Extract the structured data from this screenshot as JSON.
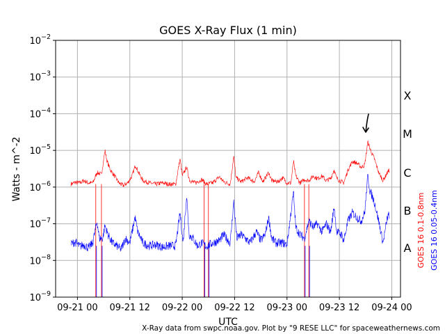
{
  "chart_data": {
    "type": "line",
    "title": "GOES X-Ray Flux (1 min)",
    "xlabel": "UTC",
    "ylabel": "Watts - m^-2",
    "y_scale": "log",
    "ylim": [
      1e-09,
      0.01
    ],
    "xlim_hours": [
      -5.0,
      74.0
    ],
    "x_ticks": [
      {
        "hour": 0,
        "label": "09-21 00"
      },
      {
        "hour": 12,
        "label": "09-21 12"
      },
      {
        "hour": 24,
        "label": "09-22 00"
      },
      {
        "hour": 36,
        "label": "09-22 12"
      },
      {
        "hour": 48,
        "label": "09-23 00"
      },
      {
        "hour": 60,
        "label": "09-23 12"
      },
      {
        "hour": 72,
        "label": "09-24 00"
      }
    ],
    "y_ticks": [
      {
        "value": 1e-09,
        "base": "10",
        "exp": "−9"
      },
      {
        "value": 1e-08,
        "base": "10",
        "exp": "−8"
      },
      {
        "value": 1e-07,
        "base": "10",
        "exp": "−7"
      },
      {
        "value": 1e-06,
        "base": "10",
        "exp": "−6"
      },
      {
        "value": 1e-05,
        "base": "10",
        "exp": "−5"
      },
      {
        "value": 0.0001,
        "base": "10",
        "exp": "−4"
      },
      {
        "value": 0.001,
        "base": "10",
        "exp": "−3"
      },
      {
        "value": 0.01,
        "base": "10",
        "exp": "−2"
      }
    ],
    "grid": true,
    "flare_classes": [
      {
        "label": "X",
        "value": 0.00032
      },
      {
        "label": "M",
        "value": 2.9e-05
      },
      {
        "label": "C",
        "value": 2.5e-06
      },
      {
        "label": "B",
        "value": 2.3e-07
      },
      {
        "label": "A",
        "value": 2.2e-08
      }
    ],
    "series": [
      {
        "name": "GOES 16 0.1-0.8nm",
        "color": "#ff0000",
        "points": [
          [
            -1.5,
            1.2e-06
          ],
          [
            -0.5,
            1.35e-06
          ],
          [
            0.5,
            1.3e-06
          ],
          [
            1.5,
            1.5e-06
          ],
          [
            2.5,
            1.3e-06
          ],
          [
            3.5,
            1.3e-06
          ],
          [
            4.5,
            2.5e-06
          ],
          [
            5.5,
            2.2e-06
          ],
          [
            6.3,
            1e-05
          ],
          [
            6.8,
            5e-06
          ],
          [
            7.5,
            3e-06
          ],
          [
            8.5,
            2e-06
          ],
          [
            9.5,
            1.3e-06
          ],
          [
            10.5,
            1.1e-06
          ],
          [
            11.5,
            1.3e-06
          ],
          [
            12.5,
            2e-06
          ],
          [
            13.3,
            4e-06
          ],
          [
            14.0,
            2.5e-06
          ],
          [
            15.0,
            1.5e-06
          ],
          [
            16.5,
            1.3e-06
          ],
          [
            18.0,
            1.2e-06
          ],
          [
            19.5,
            1.3e-06
          ],
          [
            21.0,
            1.2e-06
          ],
          [
            22.5,
            1.2e-06
          ],
          [
            23.5,
            6e-06
          ],
          [
            24.0,
            2e-06
          ],
          [
            25.0,
            3.5e-06
          ],
          [
            25.7,
            1.5e-06
          ],
          [
            27.0,
            1.3e-06
          ],
          [
            28.5,
            1.6e-06
          ],
          [
            29.5,
            1.2e-06
          ],
          [
            31.0,
            1.3e-06
          ],
          [
            32.5,
            1.9e-06
          ],
          [
            33.5,
            1.4e-06
          ],
          [
            35.0,
            1.2e-06
          ],
          [
            35.8,
            7e-06
          ],
          [
            36.3,
            1.8e-06
          ],
          [
            37.5,
            1.4e-06
          ],
          [
            39.0,
            1.8e-06
          ],
          [
            40.5,
            1.4e-06
          ],
          [
            41.5,
            2.5e-06
          ],
          [
            42.5,
            1.4e-06
          ],
          [
            43.8,
            2.5e-06
          ],
          [
            44.5,
            1.5e-06
          ],
          [
            46.0,
            1.4e-06
          ],
          [
            47.0,
            1.8e-06
          ],
          [
            48.0,
            1.3e-06
          ],
          [
            48.9,
            1.3e-06
          ],
          [
            49.5,
            5e-06
          ],
          [
            50.0,
            2e-06
          ],
          [
            51.0,
            1.3e-06
          ],
          [
            52.0,
            1.6e-06
          ],
          [
            53.0,
            1.5e-06
          ],
          [
            54.0,
            2e-06
          ],
          [
            55.0,
            1.7e-06
          ],
          [
            56.0,
            2e-06
          ],
          [
            57.0,
            1.5e-06
          ],
          [
            58.0,
            1.7e-06
          ],
          [
            58.8,
            3e-06
          ],
          [
            59.3,
            1.8e-06
          ],
          [
            60.0,
            1.5e-06
          ],
          [
            61.0,
            1.3e-06
          ],
          [
            62.0,
            3e-06
          ],
          [
            63.0,
            5e-06
          ],
          [
            64.0,
            4.5e-06
          ],
          [
            65.0,
            3.5e-06
          ],
          [
            65.8,
            4e-06
          ],
          [
            66.5,
            1.7e-05
          ],
          [
            67.3,
            9e-06
          ],
          [
            68.0,
            6e-06
          ],
          [
            69.0,
            2.5e-06
          ],
          [
            70.0,
            1.5e-06
          ],
          [
            71.0,
            2.5e-06
          ],
          [
            71.5,
            3e-06
          ]
        ]
      },
      {
        "name": "GOES 16 0.05-0.4nm",
        "color": "#0000ff",
        "points": [
          [
            -1.5,
            2.8e-08
          ],
          [
            -0.5,
            3.2e-08
          ],
          [
            0.5,
            2.4e-08
          ],
          [
            1.5,
            2.7e-08
          ],
          [
            2.5,
            2.2e-08
          ],
          [
            3.5,
            3e-08
          ],
          [
            4.5,
            1.2e-07
          ],
          [
            5.0,
            4e-08
          ],
          [
            5.8,
            4e-08
          ],
          [
            6.3,
            9e-08
          ],
          [
            7.0,
            5e-08
          ],
          [
            8.0,
            3e-08
          ],
          [
            9.0,
            2.5e-08
          ],
          [
            10.0,
            2e-08
          ],
          [
            11.0,
            4e-08
          ],
          [
            12.0,
            3e-08
          ],
          [
            13.2,
            1.5e-07
          ],
          [
            13.8,
            6e-08
          ],
          [
            15.0,
            3e-08
          ],
          [
            16.5,
            2.5e-08
          ],
          [
            18.0,
            2.7e-08
          ],
          [
            19.5,
            2.3e-08
          ],
          [
            21.0,
            2.5e-08
          ],
          [
            22.5,
            2.5e-08
          ],
          [
            23.5,
            2e-07
          ],
          [
            24.2,
            3e-08
          ],
          [
            25.0,
            6e-07
          ],
          [
            25.6,
            5e-08
          ],
          [
            26.5,
            4e-08
          ],
          [
            27.5,
            2.5e-08
          ],
          [
            28.5,
            3e-08
          ],
          [
            29.5,
            2.4e-08
          ],
          [
            31.0,
            3e-08
          ],
          [
            32.5,
            3.5e-08
          ],
          [
            33.5,
            5e-08
          ],
          [
            35.0,
            3e-08
          ],
          [
            35.8,
            4e-07
          ],
          [
            36.5,
            4e-08
          ],
          [
            37.5,
            5e-08
          ],
          [
            38.5,
            4e-08
          ],
          [
            39.5,
            3e-08
          ],
          [
            41.0,
            6e-08
          ],
          [
            42.0,
            3.5e-08
          ],
          [
            43.0,
            5e-08
          ],
          [
            43.8,
            1.5e-07
          ],
          [
            44.5,
            4e-08
          ],
          [
            45.5,
            3e-08
          ],
          [
            47.0,
            3e-08
          ],
          [
            48.0,
            2.7e-08
          ],
          [
            48.9,
            2e-07
          ],
          [
            49.5,
            7e-07
          ],
          [
            50.0,
            8e-08
          ],
          [
            51.0,
            5e-08
          ],
          [
            52.0,
            4e-08
          ],
          [
            53.0,
            1.2e-07
          ],
          [
            54.0,
            8e-08
          ],
          [
            55.0,
            1e-07
          ],
          [
            56.0,
            6e-08
          ],
          [
            57.0,
            1e-07
          ],
          [
            58.0,
            6e-08
          ],
          [
            58.8,
            3e-07
          ],
          [
            59.4,
            6e-08
          ],
          [
            60.5,
            5e-08
          ],
          [
            61.0,
            3.5e-08
          ],
          [
            62.0,
            1.2e-07
          ],
          [
            63.0,
            2e-07
          ],
          [
            64.0,
            1.5e-07
          ],
          [
            65.0,
            1.2e-07
          ],
          [
            65.8,
            2e-07
          ],
          [
            66.5,
            2e-06
          ],
          [
            67.0,
            8e-07
          ],
          [
            68.0,
            4e-07
          ],
          [
            69.0,
            1.2e-07
          ],
          [
            70.0,
            3e-08
          ],
          [
            71.0,
            1.5e-07
          ],
          [
            71.5,
            1.8e-07
          ]
        ]
      }
    ],
    "data_gaps_hours": [
      4.2,
      5.5,
      29.0,
      30.0,
      52.0,
      53.0
    ]
  },
  "annotations": {
    "credit": "X-Ray data from swpc.noaa.gov. Plot by \"9 RESE LLC\" for spaceweathernews.com"
  },
  "colors": {
    "long_channel": "#ff0000",
    "short_channel": "#0000ff",
    "grid": "#b0b0b0",
    "arrow": "#000000"
  }
}
